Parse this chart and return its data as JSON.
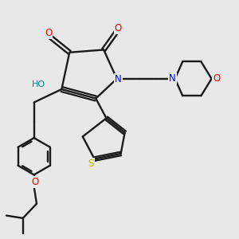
{
  "background_color": "#e8e8e8",
  "bond_color": "#1a1a1a",
  "colors": {
    "O": "#ff0000",
    "N": "#0000ff",
    "S": "#b8b800",
    "HO": "#008080",
    "C": "#1a1a1a"
  }
}
